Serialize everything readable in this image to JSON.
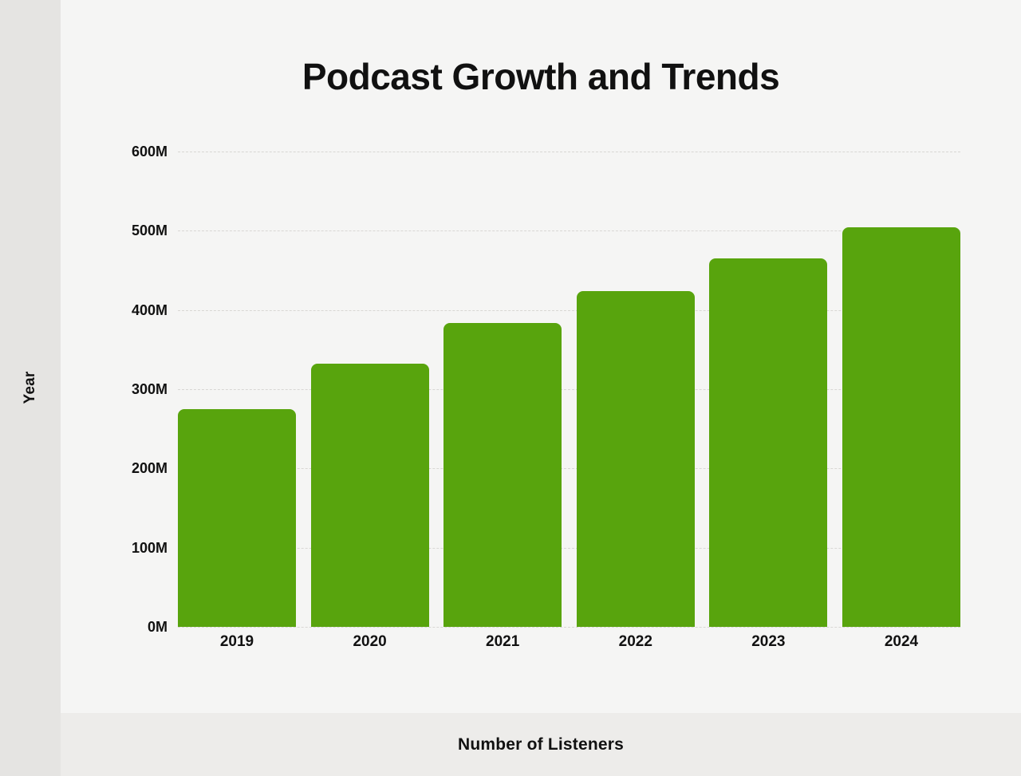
{
  "title": "Podcast Growth and Trends",
  "axes": {
    "side_label": "Year",
    "bottom_label": "Number of Listeners"
  },
  "colors": {
    "bar": "#58a40d",
    "background": "#f5f5f4",
    "sidebar": "#e5e4e2",
    "footer": "#edecea",
    "gridline": "#d8d7d4",
    "text": "#111111"
  },
  "chart_data": {
    "type": "bar",
    "title": "Podcast Growth and Trends",
    "categories": [
      "2019",
      "2020",
      "2021",
      "2022",
      "2023",
      "2024"
    ],
    "values": [
      274.8,
      332.2,
      383.7,
      424.2,
      464.7,
      504.9
    ],
    "value_unit": "M",
    "side_axis_title": "Year",
    "bottom_axis_title": "Number of Listeners",
    "ylim": [
      0,
      600
    ],
    "yticks": [
      0,
      100,
      200,
      300,
      400,
      500,
      600
    ],
    "ytick_labels": [
      "0M",
      "100M",
      "200M",
      "300M",
      "400M",
      "500M",
      "600M"
    ],
    "grid": true,
    "legend": false,
    "bar_color": "#58a40d"
  }
}
